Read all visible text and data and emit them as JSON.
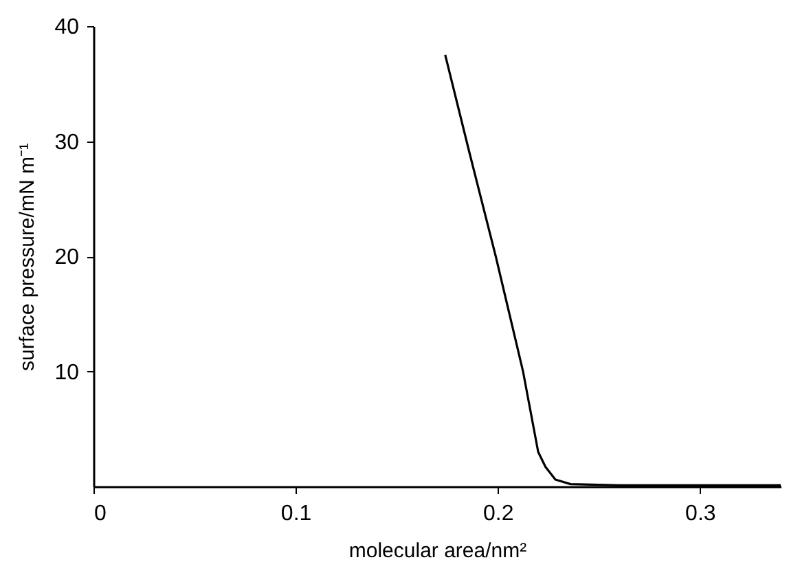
{
  "chart_data": {
    "type": "line",
    "xlabel": "molecular area/nm²",
    "ylabel": "surface pressure/mN m⁻¹",
    "x": [
      0.174,
      0.186,
      0.199,
      0.2125,
      0.22,
      0.2236,
      0.2285,
      0.236,
      0.26,
      0.3,
      0.34
    ],
    "series": [
      {
        "color": "#000000",
        "values": [
          37.5,
          29.0,
          20.0,
          10.0,
          3.0,
          1.7,
          0.6,
          0.2,
          0.1,
          0.1,
          0.1
        ]
      }
    ],
    "xlim": [
      0,
      0.34
    ],
    "ylim": [
      0,
      40
    ],
    "xticks": [
      0,
      0.1,
      0.2,
      0.3
    ],
    "yticks": [
      10,
      20,
      30,
      40
    ],
    "grid": false,
    "marker": "none",
    "line_style": "solid"
  }
}
